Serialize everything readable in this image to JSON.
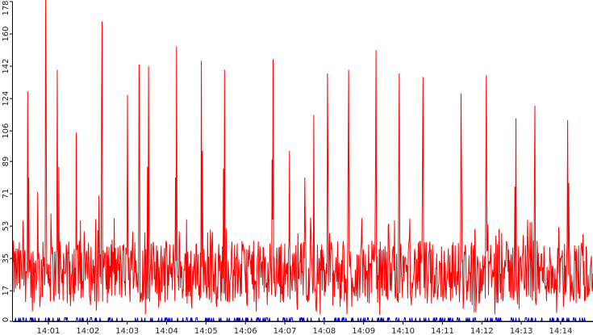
{
  "chart_data": {
    "type": "line",
    "title": "",
    "xlabel": "",
    "ylabel": "",
    "y_ticks": [
      0,
      17,
      35,
      53,
      71,
      89,
      106,
      124,
      142,
      160,
      178
    ],
    "y_tick_labels": [
      "0",
      "17",
      "35",
      "53",
      "71",
      "89",
      "106",
      "124",
      "142",
      "160",
      "178"
    ],
    "x_ticks": [
      "14:01",
      "14:02",
      "14:03",
      "14:04",
      "14:05",
      "14:06",
      "14:07",
      "14:08",
      "14:09",
      "14:10",
      "14:11",
      "14:12",
      "14:13",
      "14:14"
    ],
    "ylim": [
      0,
      178
    ],
    "xlim_minutes": [
      0.1,
      14.82
    ],
    "grid": false,
    "legend": "none",
    "colors": {
      "primary": "#ff0000",
      "secondary": "#0000cc",
      "axis": "#000000"
    },
    "series": [
      {
        "color": "#ff0000",
        "baseline_range": [
          10,
          45
        ],
        "peaks": [
          {
            "t": 0.48,
            "v": 128
          },
          {
            "t": 0.5,
            "v": 80
          },
          {
            "t": 0.35,
            "v": 56
          },
          {
            "t": 0.73,
            "v": 72
          },
          {
            "t": 0.93,
            "v": 180
          },
          {
            "t": 0.95,
            "v": 125
          },
          {
            "t": 1.07,
            "v": 60
          },
          {
            "t": 1.23,
            "v": 140
          },
          {
            "t": 1.26,
            "v": 86
          },
          {
            "t": 1.71,
            "v": 105
          },
          {
            "t": 2.37,
            "v": 167
          },
          {
            "t": 2.35,
            "v": 122
          },
          {
            "t": 2.28,
            "v": 70
          },
          {
            "t": 3.0,
            "v": 126
          },
          {
            "t": 3.3,
            "v": 143
          },
          {
            "t": 3.31,
            "v": 88
          },
          {
            "t": 3.54,
            "v": 142
          },
          {
            "t": 3.52,
            "v": 86
          },
          {
            "t": 4.25,
            "v": 153
          },
          {
            "t": 4.23,
            "v": 80
          },
          {
            "t": 4.88,
            "v": 145
          },
          {
            "t": 4.91,
            "v": 95
          },
          {
            "t": 5.47,
            "v": 140
          },
          {
            "t": 5.45,
            "v": 85
          },
          {
            "t": 6.7,
            "v": 146
          },
          {
            "t": 6.68,
            "v": 90
          },
          {
            "t": 7.12,
            "v": 95
          },
          {
            "t": 7.51,
            "v": 80
          },
          {
            "t": 7.73,
            "v": 115
          },
          {
            "t": 8.08,
            "v": 138
          },
          {
            "t": 8.1,
            "v": 85
          },
          {
            "t": 8.62,
            "v": 140
          },
          {
            "t": 8.6,
            "v": 85
          },
          {
            "t": 9.32,
            "v": 151
          },
          {
            "t": 9.3,
            "v": 90
          },
          {
            "t": 9.91,
            "v": 138
          },
          {
            "t": 9.89,
            "v": 85
          },
          {
            "t": 10.51,
            "v": 136
          },
          {
            "t": 10.49,
            "v": 90
          },
          {
            "t": 11.47,
            "v": 127
          },
          {
            "t": 11.49,
            "v": 83
          },
          {
            "t": 12.12,
            "v": 137
          },
          {
            "t": 12.1,
            "v": 83
          },
          {
            "t": 12.86,
            "v": 113
          },
          {
            "t": 12.84,
            "v": 75
          },
          {
            "t": 13.35,
            "v": 120
          },
          {
            "t": 13.33,
            "v": 78
          },
          {
            "t": 14.18,
            "v": 112
          },
          {
            "t": 14.2,
            "v": 77
          }
        ]
      },
      {
        "color": "#0000cc",
        "baseline_range": [
          0,
          2
        ]
      }
    ]
  }
}
